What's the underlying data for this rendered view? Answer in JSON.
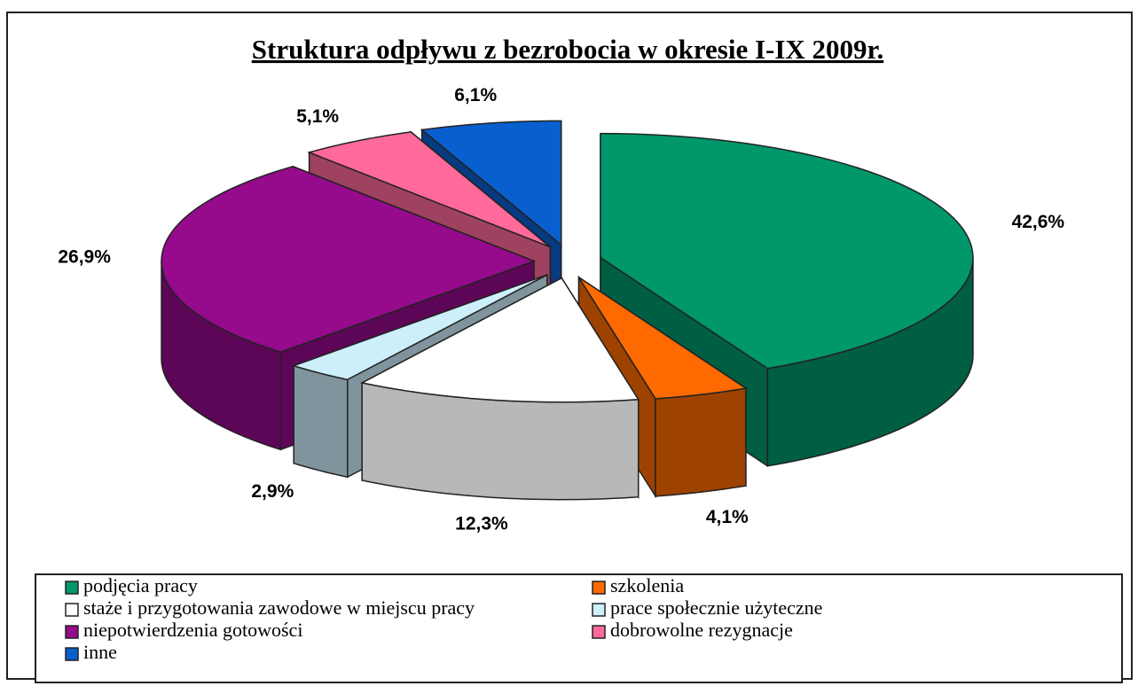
{
  "chart_data": {
    "type": "pie3d",
    "title": "Struktura odpływu z bezrobocia w okresie I-IX 2009r.",
    "categories": [
      "podjęcia pracy",
      "szkolenia",
      "staże i przygotowania zawodowe w miejscu pracy",
      "prace społecznie użyteczne",
      "niepotwierdzenia gotowości",
      "dobrowolne rezygnacje",
      "inne"
    ],
    "values": [
      42.6,
      4.1,
      12.3,
      2.9,
      26.9,
      5.1,
      6.1
    ],
    "value_labels": [
      "42,6%",
      "4,1%",
      "12,3%",
      "2,9%",
      "26,9%",
      "5,1%",
      "6,1%"
    ],
    "colors": [
      "#00976a",
      "#ff6a00",
      "#ffffff",
      "#cdeefb",
      "#960a8c",
      "#ff6a9a",
      "#0a5fcf"
    ],
    "legend": "bottom"
  }
}
